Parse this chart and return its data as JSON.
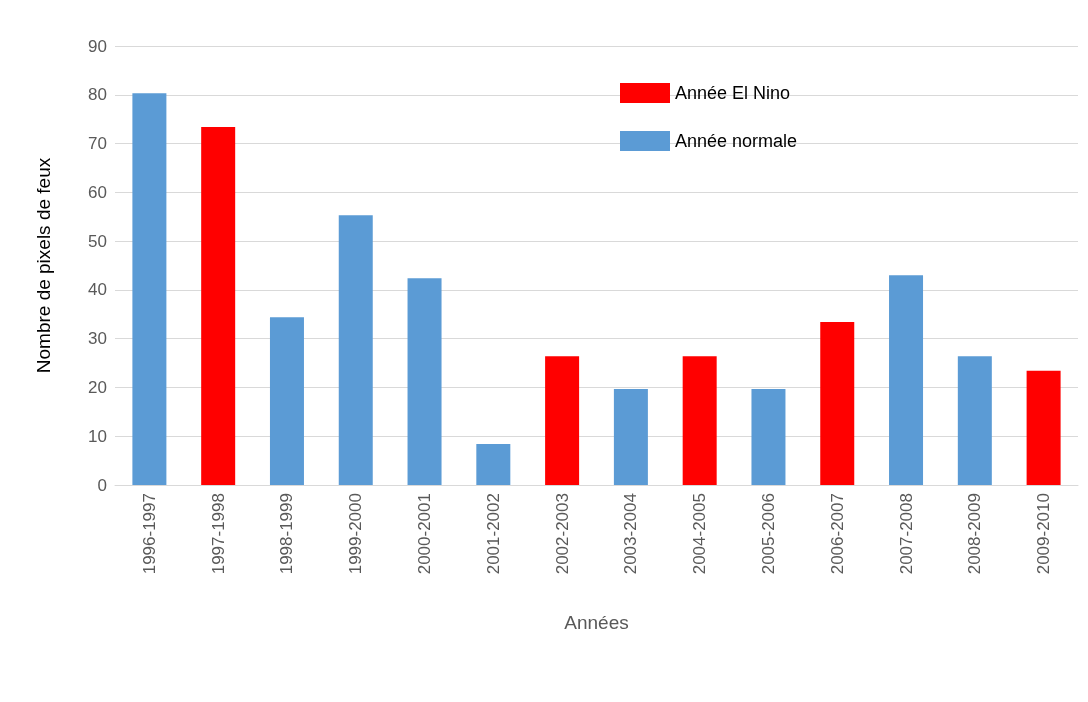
{
  "chart_data": {
    "type": "bar",
    "xlabel": "Années",
    "ylabel": "Nombre de pixels de feux",
    "categories": [
      "1996-1997",
      "1997-1998",
      "1998-1999",
      "1999-2000",
      "2000-2001",
      "2001-2002",
      "2002-2003",
      "2003-2004",
      "2004-2005",
      "2005-2006",
      "2006-2007",
      "2007-2008",
      "2008-2009",
      "2009-2010"
    ],
    "stacked": true,
    "series": [
      {
        "name": "Année El Nino",
        "color": "#ff0000",
        "values": [
          null,
          73.4,
          null,
          null,
          null,
          null,
          26.4,
          null,
          26.4,
          null,
          33.4,
          null,
          null,
          23.4
        ]
      },
      {
        "name": "Année normale",
        "color": "#5b9bd5",
        "values": [
          80.3,
          null,
          34.4,
          55.3,
          42.4,
          8.4,
          null,
          19.7,
          null,
          19.7,
          null,
          43,
          26.4,
          null
        ]
      }
    ],
    "ylim": [
      0,
      90
    ],
    "yticks": [
      0,
      10,
      20,
      30,
      40,
      50,
      60,
      70,
      80,
      90
    ],
    "grid": "y",
    "legend": "top right"
  }
}
